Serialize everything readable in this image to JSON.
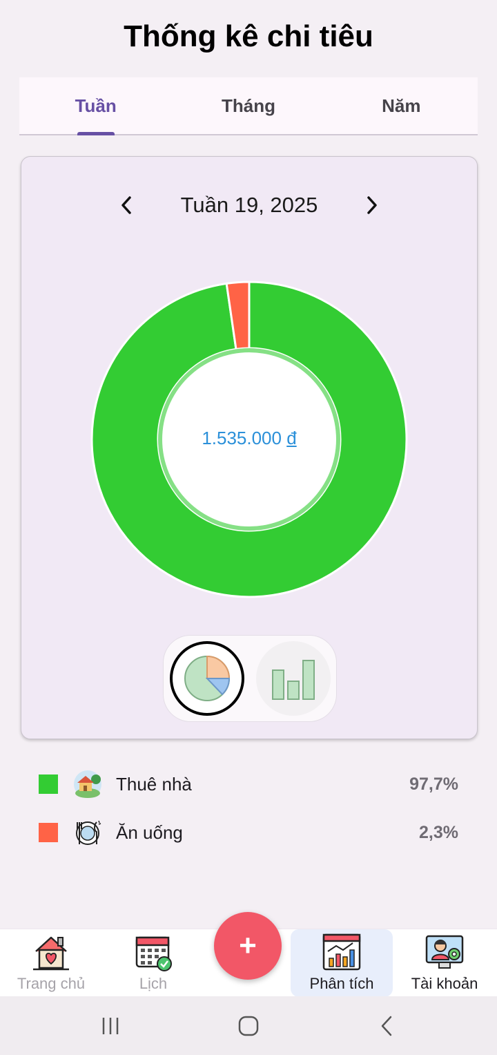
{
  "header": {
    "title": "Thống kê chi tiêu"
  },
  "tabs": [
    {
      "label": "Tuần",
      "active": true
    },
    {
      "label": "Tháng",
      "active": false
    },
    {
      "label": "Năm",
      "active": false
    }
  ],
  "period": {
    "label": "Tuần 19, 2025"
  },
  "chart_data": {
    "type": "pie",
    "donut": true,
    "total_amount": "1.535.000",
    "currency": "đ",
    "slices": [
      {
        "name": "Thuê nhà",
        "value": 97.7,
        "color": "#33cc33"
      },
      {
        "name": "Ăn uống",
        "value": 2.3,
        "color": "#ff6346"
      }
    ]
  },
  "chart_toggle": {
    "selected": "pie-chart"
  },
  "legend": [
    {
      "name": "Thuê nhà",
      "percent": "97,7%",
      "color": "#33cc33",
      "icon": "house-icon"
    },
    {
      "name": "Ăn uống",
      "percent": "2,3%",
      "color": "#ff6346",
      "icon": "dining-icon"
    }
  ],
  "bottom_nav": [
    {
      "label": "Trang chủ",
      "icon": "home-icon",
      "active": false
    },
    {
      "label": "Lịch",
      "icon": "calendar-icon",
      "active": false
    },
    {
      "label": "Phân tích",
      "icon": "analytics-icon",
      "active": true
    },
    {
      "label": "Tài khoản",
      "icon": "account-icon",
      "active": false
    }
  ],
  "fab": {
    "label": "+"
  },
  "colors": {
    "accent": "#6750a4",
    "fab": "#f25767",
    "total_text": "#2b90d9"
  }
}
